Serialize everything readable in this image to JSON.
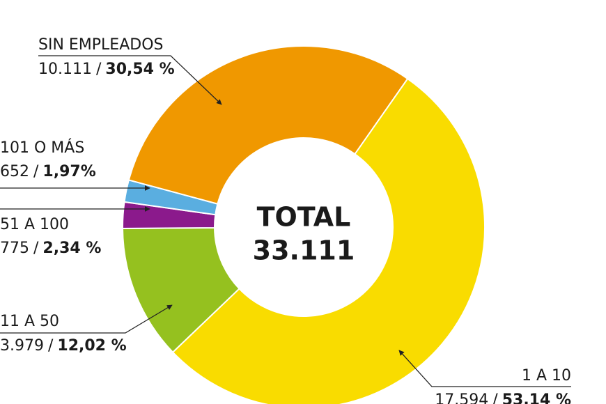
{
  "chart_data": {
    "type": "pie",
    "donut": true,
    "center_title": "TOTAL",
    "center_value": "33.111",
    "categories": [
      "1 A 10",
      "11 A 50",
      "51 A 100",
      "101 O MÁS",
      "SIN EMPLEADOS"
    ],
    "values": [
      53.14,
      12.02,
      2.34,
      1.97,
      30.54
    ],
    "value_labels": [
      "53,14 %",
      "12,02 %",
      "2,34 %",
      "1,97%",
      "30,54 %"
    ],
    "counts": [
      17594,
      3979,
      775,
      652,
      10111
    ],
    "count_labels": [
      "17.594",
      "3.979",
      "775",
      "652",
      "10.111"
    ],
    "separator": "/",
    "colors": [
      "#f9dc00",
      "#95c11f",
      "#8b1a8c",
      "#5aaee0",
      "#f09800"
    ]
  }
}
